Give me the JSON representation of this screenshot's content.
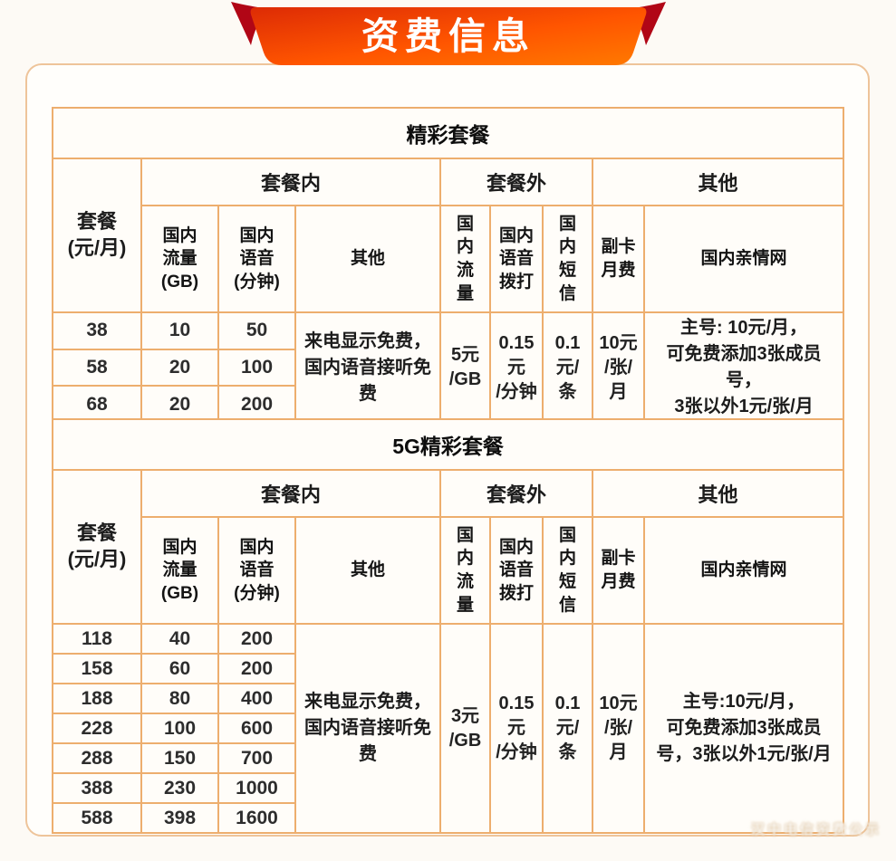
{
  "banner": {
    "title": "资费信息"
  },
  "colors": {
    "ribbon_dark_red": "#b10616",
    "ribbon_orange_start": "#dd2b05",
    "ribbon_orange_end": "#ff7a00",
    "table_border": "#edae6e",
    "frame_border": "#eec49a"
  },
  "watermark": {
    "text": "汉中电信资费公示"
  },
  "tables": [
    {
      "title": "精彩套餐",
      "groups": [
        "套餐内",
        "套餐外",
        "其他"
      ],
      "headers": {
        "plan": "套餐\n(元/月)",
        "in_data": "国内\n流量\n(GB)",
        "in_voice": "国内\n语音\n(分钟)",
        "in_other": "其他",
        "out_data": "国\n内\n流\n量",
        "out_voice": "国内\n语音\n拨打",
        "out_sms": "国\n内\n短\n信",
        "sub_fee": "副卡\n月费",
        "family": "国内亲情网"
      },
      "rows": [
        [
          "38",
          "10",
          "50"
        ],
        [
          "58",
          "20",
          "100"
        ],
        [
          "68",
          "20",
          "200"
        ]
      ],
      "merged": {
        "other": "来电显示免费，国内语音接听免费",
        "out_data": "5元\n/GB",
        "out_voice": "0.15\n元\n/分钟",
        "out_sms": "0.1\n元/\n条",
        "sub_fee": "10元\n/张/\n月",
        "family": "主号: 10元/月，\n可免费添加3张成员号，\n3张以外1元/张/月"
      }
    },
    {
      "title": "5G精彩套餐",
      "groups": [
        "套餐内",
        "套餐外",
        "其他"
      ],
      "headers": {
        "plan": "套餐\n(元/月)",
        "in_data": "国内\n流量\n(GB)",
        "in_voice": "国内\n语音\n(分钟)",
        "in_other": "其他",
        "out_data": "国\n内\n流\n量",
        "out_voice": "国内\n语音\n拨打",
        "out_sms": "国\n内\n短\n信",
        "sub_fee": "副卡\n月费",
        "family": "国内亲情网"
      },
      "rows": [
        [
          "118",
          "40",
          "200"
        ],
        [
          "158",
          "60",
          "200"
        ],
        [
          "188",
          "80",
          "400"
        ],
        [
          "228",
          "100",
          "600"
        ],
        [
          "288",
          "150",
          "700"
        ],
        [
          "388",
          "230",
          "1000"
        ],
        [
          "588",
          "398",
          "1600"
        ]
      ],
      "merged": {
        "other": "来电显示免费，国内语音接听免费",
        "out_data": "3元\n/GB",
        "out_voice": "0.15\n元\n/分钟",
        "out_sms": "0.1\n元/\n条",
        "sub_fee": "10元\n/张/\n月",
        "family": "主号:10元/月，\n可免费添加3张成员\n号，3张以外1元/张/月"
      }
    }
  ]
}
